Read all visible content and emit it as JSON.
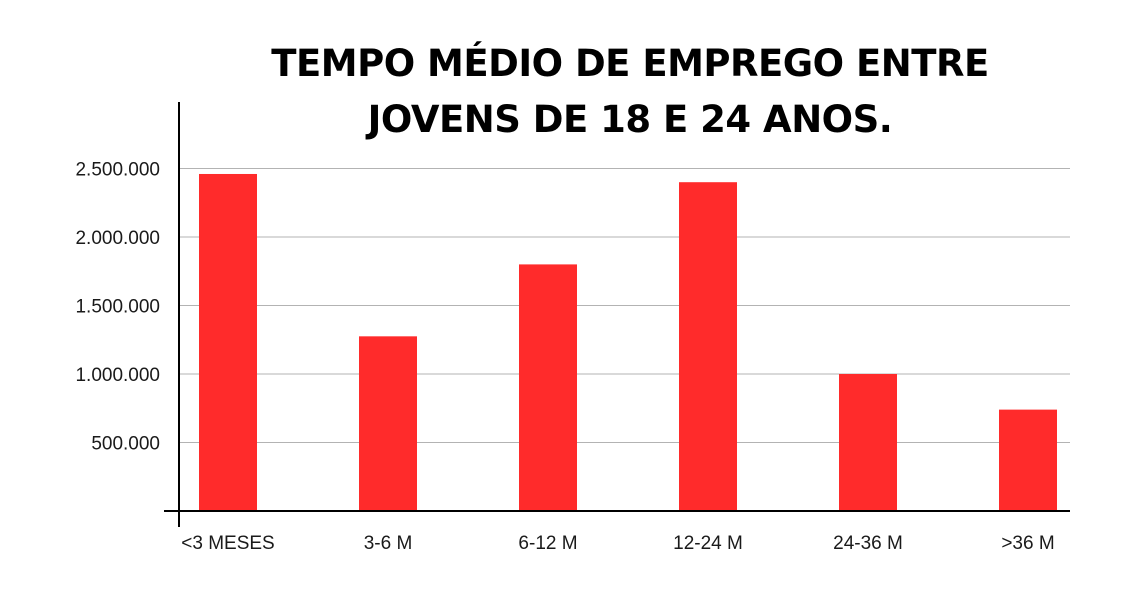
{
  "chart_data": {
    "type": "bar",
    "title_lines": [
      "TEMPO MÉDIO DE EMPREGO ENTRE",
      "JOVENS DE 18 E 24 ANOS."
    ],
    "xlabel": "",
    "ylabel": "",
    "categories": [
      "<3 MESES",
      "3-6 M",
      "6-12 M",
      "12-24 M",
      "24-36 M",
      ">36 M"
    ],
    "values": [
      2460000,
      1275000,
      1800000,
      2400000,
      1000000,
      740000
    ],
    "ylim": [
      0,
      2500000
    ],
    "yticks": [
      500000,
      1000000,
      1500000,
      2000000,
      2500000
    ],
    "ytick_labels": [
      "500.000",
      "1.000.000",
      "1.500.000",
      "2.000.000",
      "2.500.000"
    ],
    "grid": true,
    "legend": "none",
    "bar_color": "#ff2b2b",
    "grid_color": "#b3b3b3",
    "axis_color": "#000000"
  }
}
